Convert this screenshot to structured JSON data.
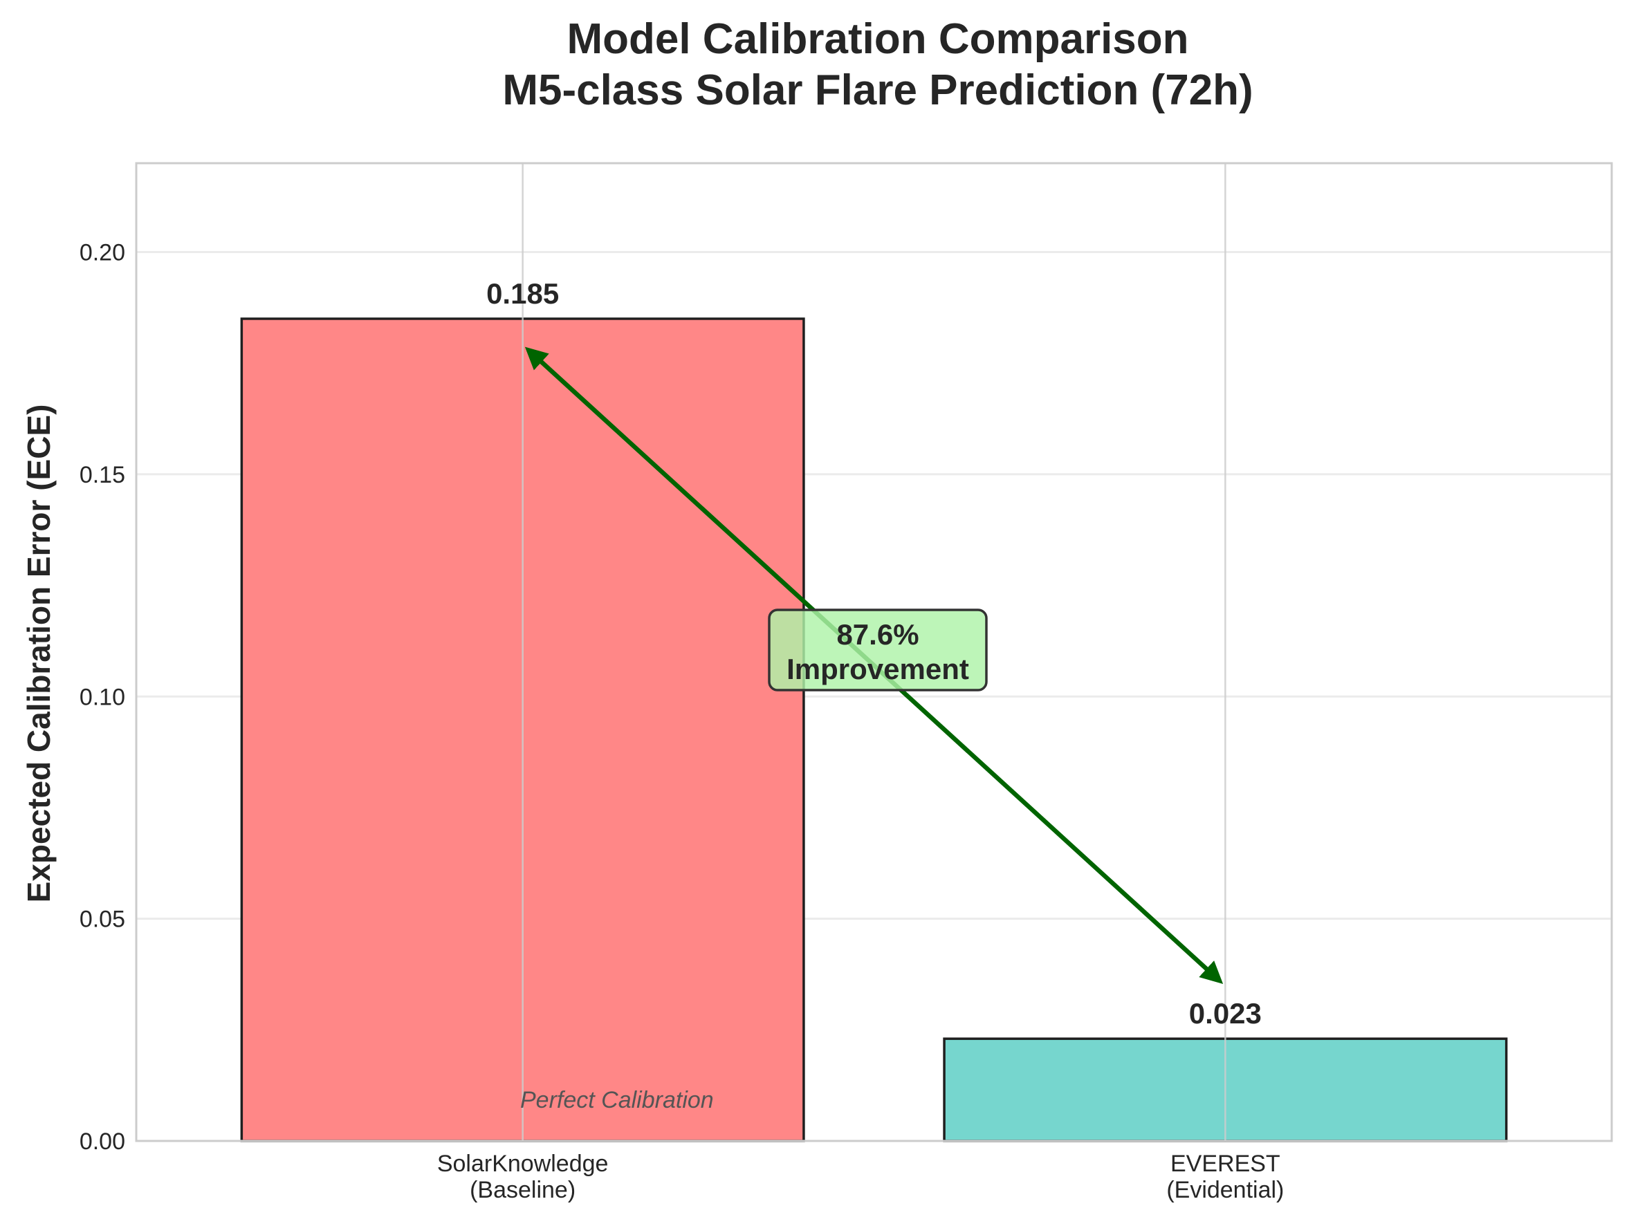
{
  "chart_data": {
    "type": "bar",
    "title": [
      "Model Calibration Comparison",
      "M5-class Solar Flare Prediction (72h)"
    ],
    "xlabel": "",
    "ylabel": "Expected Calibration Error (ECE)",
    "categories": [
      [
        "SolarKnowledge",
        "(Baseline)"
      ],
      [
        "EVEREST",
        "(Evidential)"
      ]
    ],
    "values": [
      0.185,
      0.023
    ],
    "value_labels": [
      "0.185",
      "0.023"
    ],
    "bar_colors": [
      "#ff8787",
      "#76d6ce"
    ],
    "ylim": [
      0,
      0.22
    ],
    "yticks": [
      0.0,
      0.05,
      0.1,
      0.15,
      0.2
    ],
    "ytick_labels": [
      "0.00",
      "0.05",
      "0.10",
      "0.15",
      "0.20"
    ],
    "grid": true,
    "annotation": {
      "lines": [
        "87.6%",
        "Improvement"
      ],
      "arrow_color": "#006400",
      "box_color": "#aef3a8",
      "arrow_from": {
        "category": 0,
        "y": 0.178
      },
      "arrow_to": {
        "category": 1,
        "y": 0.036
      }
    },
    "reference_text": "Perfect Calibration"
  }
}
